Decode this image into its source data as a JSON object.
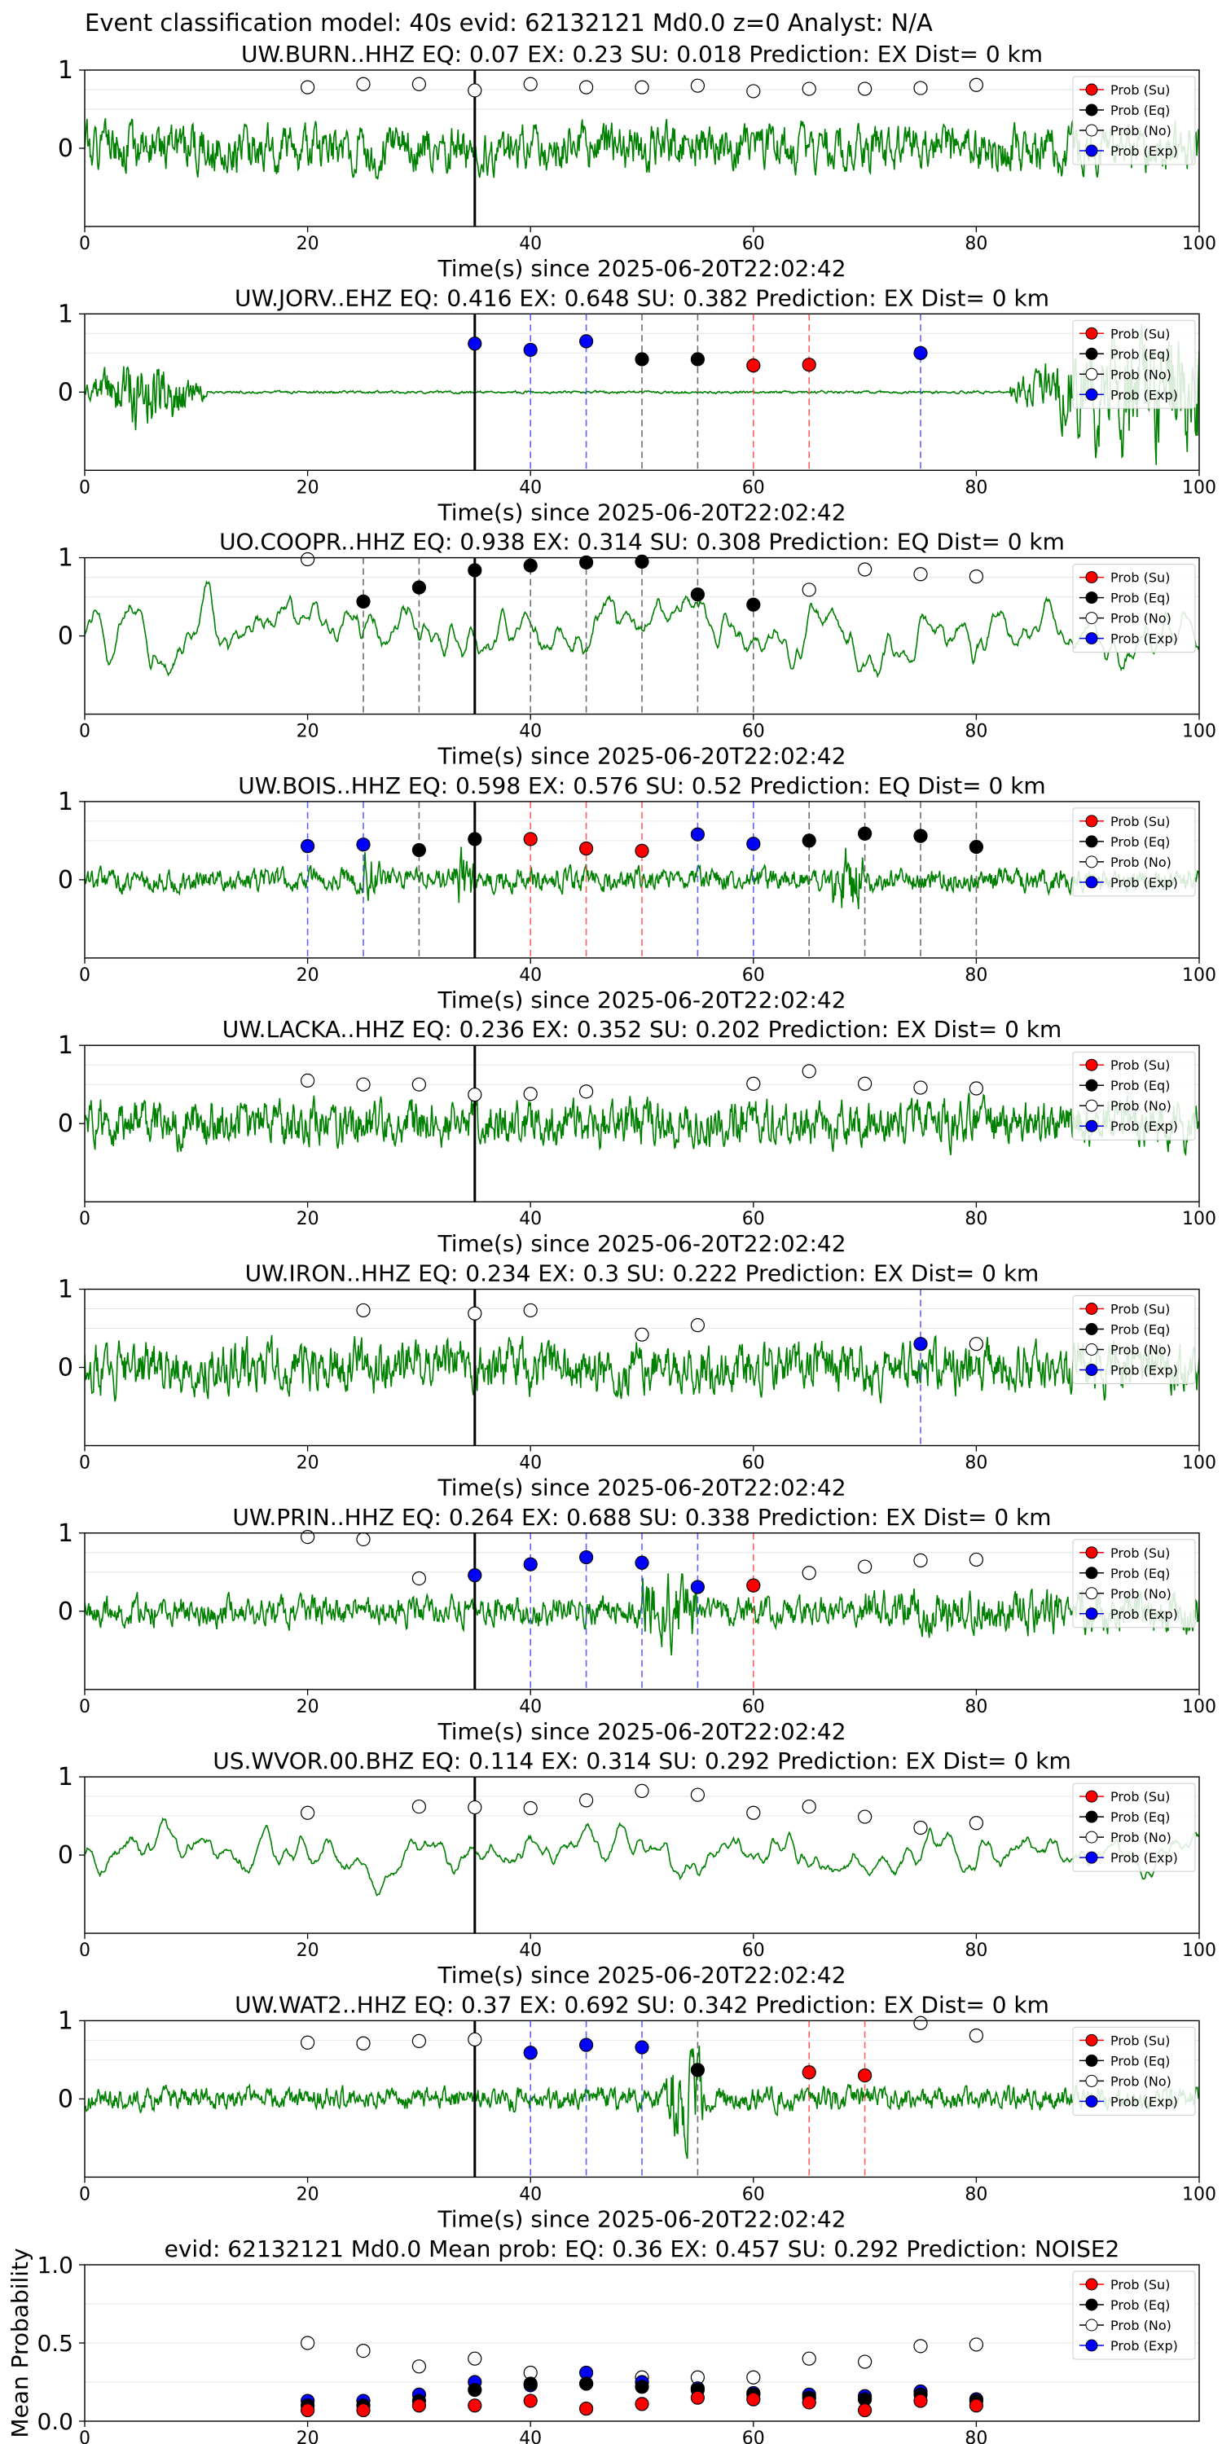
{
  "figure_title": "Event classification model: 40s evid: 62132121 Md0.0 z=0 Analyst: N/A",
  "legend_labels": [
    "Prob (Su)",
    "Prob (Eq)",
    "Prob (No)",
    "Prob (Exp)"
  ],
  "colors": {
    "waveform": "#008000",
    "su": "#ff0000",
    "eq": "#000000",
    "no": "#ffffff",
    "exp": "#0000ff",
    "grid": "#e6e6e6"
  },
  "chart_data": [
    {
      "type": "line",
      "title": "UW.BURN..HHZ   EQ: 0.07  EX: 0.23  SU: 0.018   Prediction: EX    Dist= 0 km",
      "xlabel": "Time(s) since 2025-06-20T22:02:42",
      "xlim": [
        0,
        100
      ],
      "ylim": [
        -1,
        1
      ],
      "xticks": [
        "0",
        "20",
        "40",
        "60",
        "80",
        "100"
      ],
      "yticks": [
        "0",
        "1"
      ],
      "waveform": {
        "seed": 1,
        "amplitude": 0.45,
        "envelope": "uniform"
      },
      "marker_line": 35,
      "points": [
        {
          "t": 20,
          "p": 0.78,
          "c": "no"
        },
        {
          "t": 25,
          "p": 0.82,
          "c": "no"
        },
        {
          "t": 30,
          "p": 0.82,
          "c": "no"
        },
        {
          "t": 35,
          "p": 0.74,
          "c": "no"
        },
        {
          "t": 40,
          "p": 0.82,
          "c": "no"
        },
        {
          "t": 45,
          "p": 0.78,
          "c": "no"
        },
        {
          "t": 50,
          "p": 0.78,
          "c": "no"
        },
        {
          "t": 55,
          "p": 0.8,
          "c": "no"
        },
        {
          "t": 60,
          "p": 0.73,
          "c": "no"
        },
        {
          "t": 65,
          "p": 0.76,
          "c": "no"
        },
        {
          "t": 70,
          "p": 0.76,
          "c": "no"
        },
        {
          "t": 75,
          "p": 0.77,
          "c": "no"
        },
        {
          "t": 80,
          "p": 0.81,
          "c": "no"
        }
      ]
    },
    {
      "type": "line",
      "title": "UW.JORV..EHZ   EQ: 0.416  EX: 0.648  SU: 0.382   Prediction: EX    Dist= 0 km",
      "xlabel": "Time(s) since 2025-06-20T22:02:42",
      "xlim": [
        0,
        100
      ],
      "ylim": [
        -1,
        1
      ],
      "xticks": [
        "0",
        "20",
        "40",
        "60",
        "80",
        "100"
      ],
      "yticks": [
        "0",
        "1"
      ],
      "waveform": {
        "seed": 2,
        "amplitude": 0.6,
        "envelope": "jorv"
      },
      "marker_line": 35,
      "points": [
        {
          "t": 35,
          "p": 0.62,
          "c": "exp"
        },
        {
          "t": 40,
          "p": 0.54,
          "c": "exp"
        },
        {
          "t": 45,
          "p": 0.65,
          "c": "exp"
        },
        {
          "t": 50,
          "p": 0.42,
          "c": "eq"
        },
        {
          "t": 55,
          "p": 0.42,
          "c": "eq"
        },
        {
          "t": 60,
          "p": 0.34,
          "c": "su"
        },
        {
          "t": 65,
          "p": 0.35,
          "c": "su"
        },
        {
          "t": 75,
          "p": 0.5,
          "c": "exp"
        }
      ]
    },
    {
      "type": "line",
      "title": "UO.COOPR..HHZ   EQ: 0.938  EX: 0.314  SU: 0.308   Prediction: EQ    Dist= 0 km",
      "xlabel": "Time(s) since 2025-06-20T22:02:42",
      "xlim": [
        0,
        100
      ],
      "ylim": [
        -1,
        1
      ],
      "xticks": [
        "0",
        "20",
        "40",
        "60",
        "80",
        "100"
      ],
      "yticks": [
        "0",
        "1"
      ],
      "waveform": {
        "seed": 3,
        "amplitude": 0.5,
        "envelope": "smooth"
      },
      "marker_line": 35,
      "points": [
        {
          "t": 20,
          "p": 0.98,
          "c": "no"
        },
        {
          "t": 25,
          "p": 0.44,
          "c": "eq"
        },
        {
          "t": 30,
          "p": 0.62,
          "c": "eq"
        },
        {
          "t": 35,
          "p": 0.84,
          "c": "eq"
        },
        {
          "t": 40,
          "p": 0.9,
          "c": "eq"
        },
        {
          "t": 45,
          "p": 0.94,
          "c": "eq"
        },
        {
          "t": 50,
          "p": 0.95,
          "c": "eq"
        },
        {
          "t": 55,
          "p": 0.53,
          "c": "eq"
        },
        {
          "t": 60,
          "p": 0.4,
          "c": "eq"
        },
        {
          "t": 65,
          "p": 0.59,
          "c": "no"
        },
        {
          "t": 70,
          "p": 0.85,
          "c": "no"
        },
        {
          "t": 75,
          "p": 0.79,
          "c": "no"
        },
        {
          "t": 80,
          "p": 0.76,
          "c": "no"
        }
      ]
    },
    {
      "type": "line",
      "title": "UW.BOIS..HHZ   EQ: 0.598  EX: 0.576  SU: 0.52   Prediction: EQ    Dist= 0 km",
      "xlabel": "Time(s) since 2025-06-20T22:02:42",
      "xlim": [
        0,
        100
      ],
      "ylim": [
        -1,
        1
      ],
      "xticks": [
        "0",
        "20",
        "40",
        "60",
        "80",
        "100"
      ],
      "yticks": [
        "0",
        "1"
      ],
      "waveform": {
        "seed": 4,
        "amplitude": 0.22,
        "envelope": "spiky"
      },
      "marker_line": 35,
      "points": [
        {
          "t": 20,
          "p": 0.43,
          "c": "exp"
        },
        {
          "t": 25,
          "p": 0.45,
          "c": "exp"
        },
        {
          "t": 30,
          "p": 0.38,
          "c": "eq"
        },
        {
          "t": 35,
          "p": 0.52,
          "c": "eq"
        },
        {
          "t": 40,
          "p": 0.52,
          "c": "su"
        },
        {
          "t": 45,
          "p": 0.4,
          "c": "su"
        },
        {
          "t": 50,
          "p": 0.37,
          "c": "su"
        },
        {
          "t": 55,
          "p": 0.58,
          "c": "exp"
        },
        {
          "t": 60,
          "p": 0.46,
          "c": "exp"
        },
        {
          "t": 65,
          "p": 0.5,
          "c": "eq"
        },
        {
          "t": 70,
          "p": 0.59,
          "c": "eq"
        },
        {
          "t": 75,
          "p": 0.56,
          "c": "eq"
        },
        {
          "t": 80,
          "p": 0.42,
          "c": "eq"
        }
      ]
    },
    {
      "type": "line",
      "title": "UW.LACKA..HHZ   EQ: 0.236  EX: 0.352  SU: 0.202   Prediction: EX    Dist= 0 km",
      "xlabel": "Time(s) since 2025-06-20T22:02:42",
      "xlim": [
        0,
        100
      ],
      "ylim": [
        -1,
        1
      ],
      "xticks": [
        "0",
        "20",
        "40",
        "60",
        "80",
        "100"
      ],
      "yticks": [
        "0",
        "1"
      ],
      "waveform": {
        "seed": 5,
        "amplitude": 0.45,
        "envelope": "uniform"
      },
      "marker_line": 35,
      "points": [
        {
          "t": 20,
          "p": 0.55,
          "c": "no"
        },
        {
          "t": 25,
          "p": 0.5,
          "c": "no"
        },
        {
          "t": 30,
          "p": 0.5,
          "c": "no"
        },
        {
          "t": 35,
          "p": 0.37,
          "c": "no"
        },
        {
          "t": 40,
          "p": 0.38,
          "c": "no"
        },
        {
          "t": 45,
          "p": 0.41,
          "c": "no"
        },
        {
          "t": 60,
          "p": 0.51,
          "c": "no"
        },
        {
          "t": 65,
          "p": 0.67,
          "c": "no"
        },
        {
          "t": 70,
          "p": 0.51,
          "c": "no"
        },
        {
          "t": 75,
          "p": 0.46,
          "c": "no"
        },
        {
          "t": 80,
          "p": 0.45,
          "c": "no"
        }
      ]
    },
    {
      "type": "line",
      "title": "UW.IRON..HHZ   EQ: 0.234  EX: 0.3  SU: 0.222   Prediction: EX    Dist= 0 km",
      "xlabel": "Time(s) since 2025-06-20T22:02:42",
      "xlim": [
        0,
        100
      ],
      "ylim": [
        -1,
        1
      ],
      "xticks": [
        "0",
        "20",
        "40",
        "60",
        "80",
        "100"
      ],
      "yticks": [
        "0",
        "1"
      ],
      "waveform": {
        "seed": 6,
        "amplitude": 0.5,
        "envelope": "uniform"
      },
      "marker_line": 35,
      "points": [
        {
          "t": 25,
          "p": 0.73,
          "c": "no"
        },
        {
          "t": 35,
          "p": 0.69,
          "c": "no"
        },
        {
          "t": 40,
          "p": 0.73,
          "c": "no"
        },
        {
          "t": 50,
          "p": 0.42,
          "c": "no"
        },
        {
          "t": 55,
          "p": 0.54,
          "c": "no"
        },
        {
          "t": 75,
          "p": 0.3,
          "c": "exp"
        },
        {
          "t": 80,
          "p": 0.3,
          "c": "no"
        }
      ]
    },
    {
      "type": "line",
      "title": "UW.PRIN..HHZ   EQ: 0.264  EX: 0.688  SU: 0.338   Prediction: EX    Dist= 0 km",
      "xlabel": "Time(s) since 2025-06-20T22:02:42",
      "xlim": [
        0,
        100
      ],
      "ylim": [
        -1,
        1
      ],
      "xticks": [
        "0",
        "20",
        "40",
        "60",
        "80",
        "100"
      ],
      "yticks": [
        "0",
        "1"
      ],
      "waveform": {
        "seed": 7,
        "amplitude": 0.28,
        "envelope": "prin"
      },
      "marker_line": 35,
      "points": [
        {
          "t": 20,
          "p": 0.95,
          "c": "no"
        },
        {
          "t": 25,
          "p": 0.92,
          "c": "no"
        },
        {
          "t": 30,
          "p": 0.42,
          "c": "no"
        },
        {
          "t": 35,
          "p": 0.46,
          "c": "exp"
        },
        {
          "t": 40,
          "p": 0.6,
          "c": "exp"
        },
        {
          "t": 45,
          "p": 0.69,
          "c": "exp"
        },
        {
          "t": 50,
          "p": 0.62,
          "c": "exp"
        },
        {
          "t": 55,
          "p": 0.31,
          "c": "exp"
        },
        {
          "t": 60,
          "p": 0.33,
          "c": "su"
        },
        {
          "t": 65,
          "p": 0.49,
          "c": "no"
        },
        {
          "t": 70,
          "p": 0.57,
          "c": "no"
        },
        {
          "t": 75,
          "p": 0.65,
          "c": "no"
        },
        {
          "t": 80,
          "p": 0.66,
          "c": "no"
        }
      ]
    },
    {
      "type": "line",
      "title": "US.WVOR.00.BHZ   EQ: 0.114  EX: 0.314  SU: 0.292   Prediction: EX    Dist= 0 km",
      "xlabel": "Time(s) since 2025-06-20T22:02:42",
      "xlim": [
        0,
        100
      ],
      "ylim": [
        -1,
        1
      ],
      "xticks": [
        "0",
        "20",
        "40",
        "60",
        "80",
        "100"
      ],
      "yticks": [
        "0",
        "1"
      ],
      "waveform": {
        "seed": 8,
        "amplitude": 0.35,
        "envelope": "smooth"
      },
      "marker_line": 35,
      "points": [
        {
          "t": 20,
          "p": 0.54,
          "c": "no"
        },
        {
          "t": 30,
          "p": 0.62,
          "c": "no"
        },
        {
          "t": 35,
          "p": 0.61,
          "c": "no"
        },
        {
          "t": 40,
          "p": 0.6,
          "c": "no"
        },
        {
          "t": 45,
          "p": 0.7,
          "c": "no"
        },
        {
          "t": 50,
          "p": 0.82,
          "c": "no"
        },
        {
          "t": 55,
          "p": 0.77,
          "c": "no"
        },
        {
          "t": 60,
          "p": 0.54,
          "c": "no"
        },
        {
          "t": 65,
          "p": 0.62,
          "c": "no"
        },
        {
          "t": 70,
          "p": 0.49,
          "c": "no"
        },
        {
          "t": 75,
          "p": 0.35,
          "c": "no"
        },
        {
          "t": 80,
          "p": 0.41,
          "c": "no"
        }
      ]
    },
    {
      "type": "line",
      "title": "UW.WAT2..HHZ   EQ: 0.37  EX: 0.692  SU: 0.342   Prediction: EX    Dist= 0 km",
      "xlabel": "Time(s) since 2025-06-20T22:02:42",
      "xlim": [
        0,
        100
      ],
      "ylim": [
        -1,
        1
      ],
      "xticks": [
        "0",
        "20",
        "40",
        "60",
        "80",
        "100"
      ],
      "yticks": [
        "0",
        "1"
      ],
      "waveform": {
        "seed": 9,
        "amplitude": 0.22,
        "envelope": "wat2"
      },
      "marker_line": 35,
      "points": [
        {
          "t": 20,
          "p": 0.72,
          "c": "no"
        },
        {
          "t": 25,
          "p": 0.71,
          "c": "no"
        },
        {
          "t": 30,
          "p": 0.74,
          "c": "no"
        },
        {
          "t": 35,
          "p": 0.76,
          "c": "no"
        },
        {
          "t": 40,
          "p": 0.59,
          "c": "exp"
        },
        {
          "t": 45,
          "p": 0.69,
          "c": "exp"
        },
        {
          "t": 50,
          "p": 0.66,
          "c": "exp"
        },
        {
          "t": 55,
          "p": 0.37,
          "c": "eq"
        },
        {
          "t": 65,
          "p": 0.34,
          "c": "su"
        },
        {
          "t": 70,
          "p": 0.3,
          "c": "su"
        },
        {
          "t": 75,
          "p": 0.97,
          "c": "no"
        },
        {
          "t": 80,
          "p": 0.81,
          "c": "no"
        }
      ]
    },
    {
      "type": "scatter",
      "title": "evid: 62132121  Md0.0   Mean prob:    EQ: 0.36  EX: 0.457  SU: 0.292   Prediction: NOISE2",
      "ylabel": "Mean Probability",
      "xlim": [
        0,
        100
      ],
      "ylim": [
        0,
        1
      ],
      "xticks": [
        "0",
        "20",
        "40",
        "60",
        "80"
      ],
      "yticks": [
        "0.0",
        "0.5",
        "1.0"
      ],
      "x": [
        20,
        25,
        30,
        35,
        40,
        45,
        50,
        55,
        60,
        65,
        70,
        75,
        80
      ],
      "series": [
        {
          "name": "Prob (No)",
          "c": "no",
          "values": [
            0.5,
            0.45,
            0.35,
            0.4,
            0.31,
            0.24,
            0.28,
            0.28,
            0.28,
            0.4,
            0.38,
            0.48,
            0.49
          ]
        },
        {
          "name": "Prob (Exp)",
          "c": "exp",
          "values": [
            0.13,
            0.13,
            0.17,
            0.25,
            0.23,
            0.31,
            0.25,
            0.21,
            0.18,
            0.17,
            0.16,
            0.19,
            0.14
          ]
        },
        {
          "name": "Prob (Eq)",
          "c": "eq",
          "values": [
            0.1,
            0.1,
            0.13,
            0.2,
            0.24,
            0.24,
            0.22,
            0.2,
            0.17,
            0.15,
            0.14,
            0.17,
            0.13
          ]
        },
        {
          "name": "Prob (Su)",
          "c": "su",
          "values": [
            0.07,
            0.07,
            0.1,
            0.1,
            0.13,
            0.08,
            0.11,
            0.15,
            0.14,
            0.12,
            0.07,
            0.13,
            0.1
          ]
        }
      ]
    }
  ]
}
